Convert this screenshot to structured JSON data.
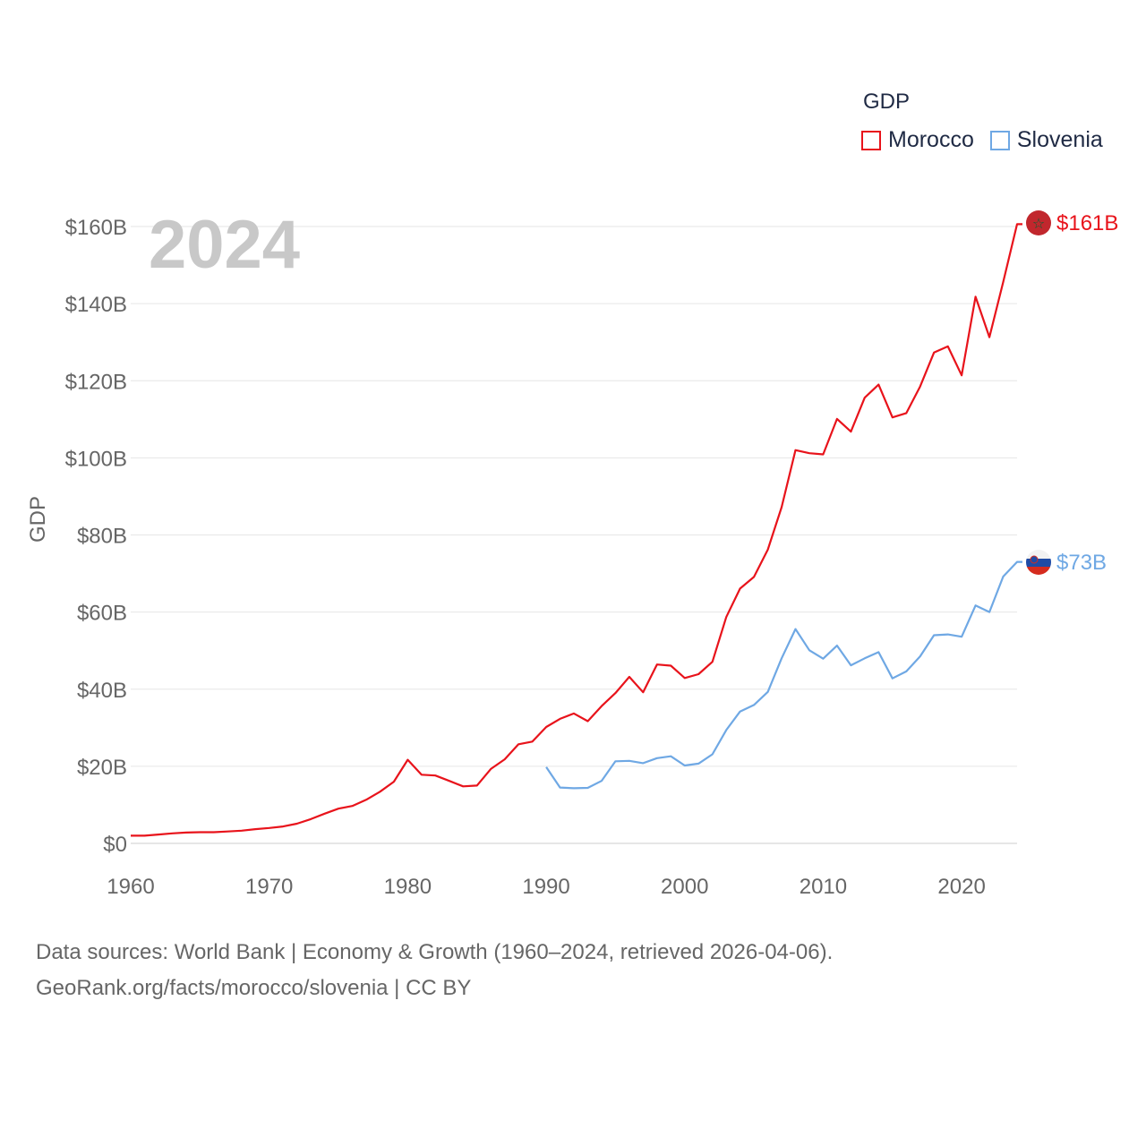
{
  "chart_data": {
    "type": "line",
    "title": "2024",
    "ylabel": "GDP",
    "xlabel": "",
    "xlim": [
      1960,
      2024
    ],
    "ylim": [
      0,
      160
    ],
    "y_unit": "billion USD",
    "x_ticks": [
      1960,
      1970,
      1980,
      1990,
      2000,
      2010,
      2020
    ],
    "y_ticks": [
      {
        "value": 0,
        "label": "$0"
      },
      {
        "value": 20,
        "label": "$20B"
      },
      {
        "value": 40,
        "label": "$40B"
      },
      {
        "value": 60,
        "label": "$60B"
      },
      {
        "value": 80,
        "label": "$80B"
      },
      {
        "value": 100,
        "label": "$100B"
      },
      {
        "value": 120,
        "label": "$120B"
      },
      {
        "value": 140,
        "label": "$140B"
      },
      {
        "value": 160,
        "label": "$160B"
      }
    ],
    "legend_title": "GDP",
    "legend_position": "top-right",
    "grid": true,
    "series": [
      {
        "name": "Morocco",
        "color": "#e8131b",
        "end_label": "$161B",
        "flag_icon": "morocco-flag-icon",
        "x": [
          1960,
          1961,
          1962,
          1963,
          1964,
          1965,
          1966,
          1967,
          1968,
          1969,
          1970,
          1971,
          1972,
          1973,
          1974,
          1975,
          1976,
          1977,
          1978,
          1979,
          1980,
          1981,
          1982,
          1983,
          1984,
          1985,
          1986,
          1987,
          1988,
          1989,
          1990,
          1991,
          1992,
          1993,
          1994,
          1995,
          1996,
          1997,
          1998,
          1999,
          2000,
          2001,
          2002,
          2003,
          2004,
          2005,
          2006,
          2007,
          2008,
          2009,
          2010,
          2011,
          2012,
          2013,
          2014,
          2015,
          2016,
          2017,
          2018,
          2019,
          2020,
          2021,
          2022,
          2023,
          2024
        ],
        "values": [
          2.0,
          2.0,
          2.3,
          2.6,
          2.8,
          2.9,
          2.9,
          3.1,
          3.3,
          3.7,
          4.0,
          4.4,
          5.1,
          6.3,
          7.7,
          9.0,
          9.7,
          11.3,
          13.4,
          16.0,
          21.7,
          17.8,
          17.6,
          16.2,
          14.8,
          15.0,
          19.3,
          21.8,
          25.7,
          26.4,
          30.2,
          32.3,
          33.7,
          31.7,
          35.6,
          39.0,
          43.2,
          39.2,
          46.4,
          46.1,
          42.9,
          43.9,
          47.1,
          58.7,
          66.1,
          69.1,
          76.2,
          87.2,
          102.0,
          101.2,
          100.9,
          110.1,
          106.8,
          115.6,
          119.0,
          110.5,
          111.6,
          118.5,
          127.3,
          128.9,
          121.4,
          141.8,
          131.3,
          145.6,
          160.6
        ]
      },
      {
        "name": "Slovenia",
        "color": "#6fa8e4",
        "end_label": "$73B",
        "flag_icon": "slovenia-flag-icon",
        "x": [
          1990,
          1991,
          1992,
          1993,
          1994,
          1995,
          1996,
          1997,
          1998,
          1999,
          2000,
          2001,
          2002,
          2003,
          2004,
          2005,
          2006,
          2007,
          2008,
          2009,
          2010,
          2011,
          2012,
          2013,
          2014,
          2015,
          2016,
          2017,
          2018,
          2019,
          2020,
          2021,
          2022,
          2023,
          2024
        ],
        "values": [
          19.8,
          14.5,
          14.3,
          14.4,
          16.2,
          21.3,
          21.4,
          20.8,
          22.1,
          22.6,
          20.2,
          20.7,
          23.1,
          29.4,
          34.2,
          35.9,
          39.3,
          48.0,
          55.6,
          50.1,
          47.9,
          51.3,
          46.2,
          48.0,
          49.6,
          42.8,
          44.6,
          48.5,
          54.0,
          54.2,
          53.6,
          61.7,
          60.0,
          69.2,
          73.0
        ]
      }
    ]
  },
  "footer": {
    "line1": "Data sources: World Bank | Economy & Growth (1960–2024, retrieved 2026-04-06).",
    "line2": "GeoRank.org/facts/morocco/slovenia | CC BY"
  }
}
